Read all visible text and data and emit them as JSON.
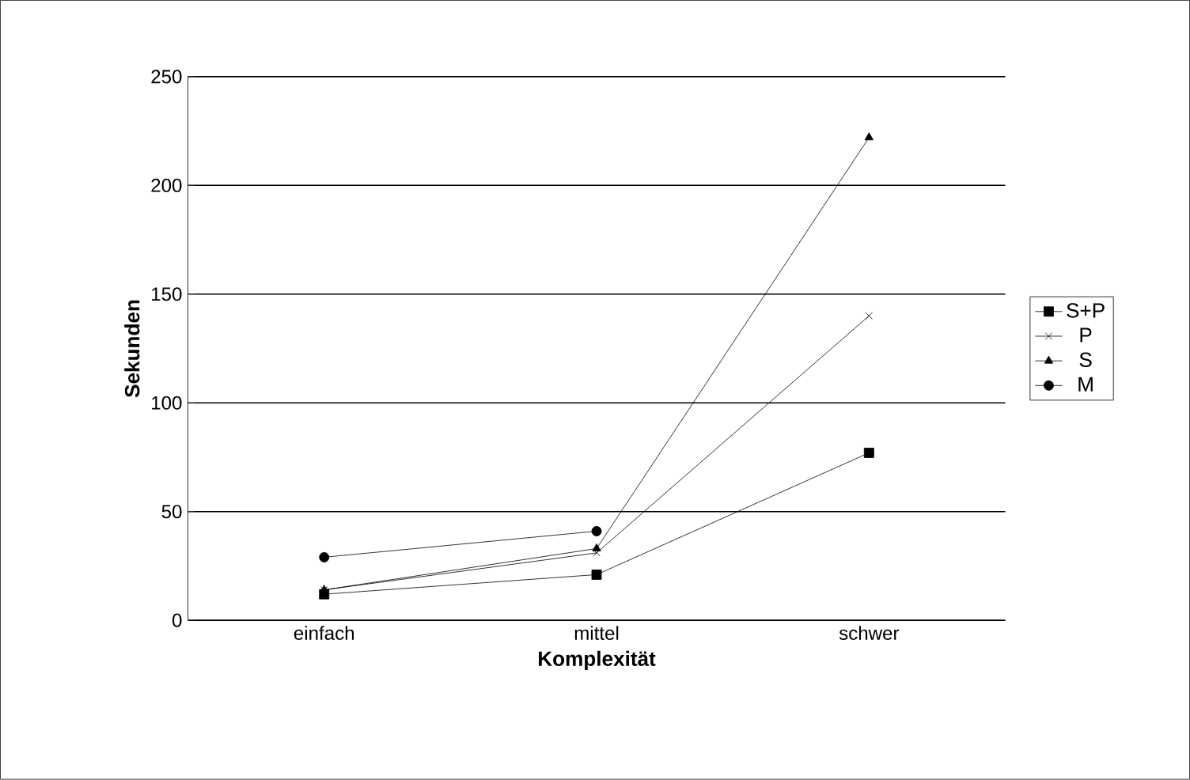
{
  "chart_data": {
    "type": "line",
    "xlabel": "Komplexität",
    "ylabel": "Sekunden",
    "categories": [
      "einfach",
      "mittel",
      "schwer"
    ],
    "series": [
      {
        "name": "S+P",
        "color": "#000000",
        "marker": "square",
        "values": [
          12,
          21,
          77
        ]
      },
      {
        "name": "P",
        "color": "#000000",
        "marker": "cross",
        "values": [
          14,
          31,
          140
        ]
      },
      {
        "name": "S",
        "color": "#000000",
        "marker": "triangle",
        "values": [
          14,
          33,
          222
        ]
      },
      {
        "name": "M",
        "color": "#000000",
        "marker": "circle",
        "values": [
          29,
          41,
          null
        ]
      }
    ],
    "ylim": [
      0,
      250
    ],
    "yticks": [
      0,
      50,
      100,
      150,
      200,
      250
    ],
    "grid": "y",
    "legend": "right"
  }
}
